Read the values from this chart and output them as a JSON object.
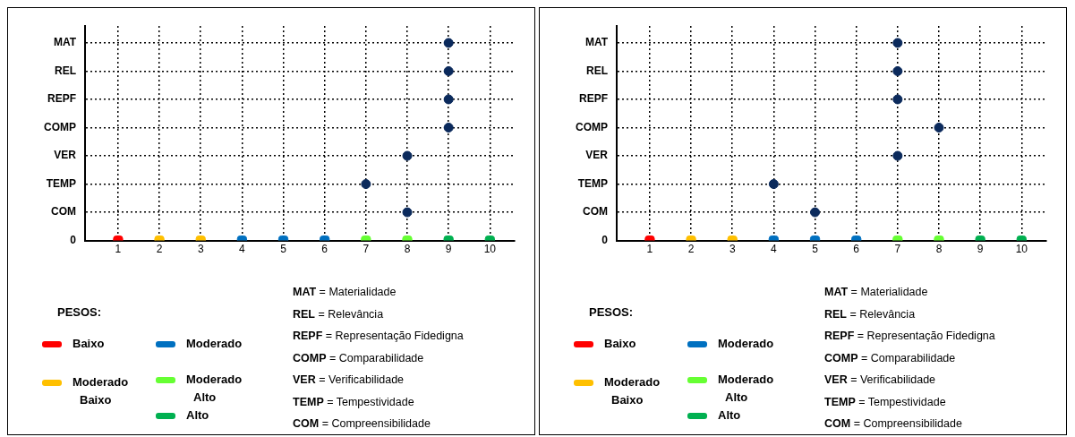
{
  "chart_data": [
    {
      "type": "scatter",
      "orientation": "horizontal",
      "categories": [
        "MAT",
        "REL",
        "REPF",
        "COMP",
        "VER",
        "TEMP",
        "COM",
        "0"
      ],
      "xlim": [
        0.2,
        10.6
      ],
      "xticks": [
        1,
        2,
        3,
        4,
        5,
        6,
        7,
        8,
        9,
        10
      ],
      "grid": true,
      "marker": "circle",
      "legend": "bottom left",
      "legend_title": "PESOS:",
      "series": [
        {
          "color": "#0b2a5c",
          "values": [
            9,
            9,
            9,
            9,
            8,
            7,
            8,
            null
          ]
        },
        {
          "name": "Baixo",
          "color": "#ff0000",
          "marker": "square",
          "x": [
            "0"
          ],
          "values": [
            1
          ]
        },
        {
          "name": "Moderado Baixo",
          "color": "#ffc000",
          "marker": "square",
          "x": [
            "0",
            "0"
          ],
          "values": [
            2,
            3
          ]
        },
        {
          "name": "Moderado",
          "color": "#0070c0",
          "marker": "square",
          "x": [
            "0",
            "0",
            "0"
          ],
          "values": [
            4,
            5,
            6
          ]
        },
        {
          "name": "Moderado Alto",
          "color": "#66ff33",
          "marker": "square",
          "x": [
            "0",
            "0"
          ],
          "values": [
            7,
            8
          ]
        },
        {
          "name": "Alto",
          "color": "#00b050",
          "marker": "square",
          "x": [
            "0",
            "0"
          ],
          "values": [
            9,
            10
          ]
        }
      ],
      "annotations": [
        "MAT = Materialidade",
        "REL = Relevância",
        "REPF = Representação Fidedigna",
        "COMP = Comparabilidade",
        "VER = Verificabilidade",
        "TEMP = Tempestividade",
        "COM = Compreensibilidade"
      ]
    },
    {
      "type": "scatter",
      "orientation": "horizontal",
      "categories": [
        "MAT",
        "REL",
        "REPF",
        "COMP",
        "VER",
        "TEMP",
        "COM",
        "0"
      ],
      "xlim": [
        0.2,
        10.6
      ],
      "xticks": [
        1,
        2,
        3,
        4,
        5,
        6,
        7,
        8,
        9,
        10
      ],
      "grid": true,
      "marker": "circle",
      "legend": "bottom left",
      "legend_title": "PESOS:",
      "series": [
        {
          "color": "#0b2a5c",
          "values": [
            7,
            7,
            7,
            8,
            7,
            4,
            5,
            null
          ]
        },
        {
          "name": "Baixo",
          "color": "#ff0000",
          "marker": "square",
          "x": [
            "0"
          ],
          "values": [
            1
          ]
        },
        {
          "name": "Moderado Baixo",
          "color": "#ffc000",
          "marker": "square",
          "x": [
            "0",
            "0"
          ],
          "values": [
            2,
            3
          ]
        },
        {
          "name": "Moderado",
          "color": "#0070c0",
          "marker": "square",
          "x": [
            "0",
            "0",
            "0"
          ],
          "values": [
            4,
            5,
            6
          ]
        },
        {
          "name": "Moderado Alto",
          "color": "#66ff33",
          "marker": "square",
          "x": [
            "0",
            "0"
          ],
          "values": [
            7,
            8
          ]
        },
        {
          "name": "Alto",
          "color": "#00b050",
          "marker": "square",
          "x": [
            "0",
            "0"
          ],
          "values": [
            9,
            10
          ]
        }
      ],
      "annotations": [
        "MAT = Materialidade",
        "REL = Relevância",
        "REPF = Representação Fidedigna",
        "COMP = Comparabilidade",
        "VER = Verificabilidade",
        "TEMP = Tempestividade",
        "COM = Compreensibilidade"
      ]
    }
  ]
}
